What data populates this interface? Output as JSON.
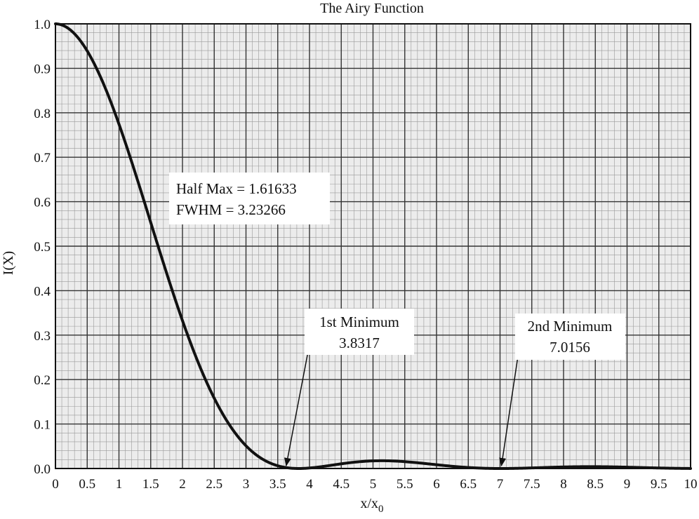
{
  "chart_data": {
    "type": "line",
    "title": "The Airy Function",
    "xlabel": "x/x",
    "xlabel_sub": "0",
    "ylabel": "I(X)",
    "xlim": [
      0,
      10
    ],
    "ylim": [
      0,
      1.0
    ],
    "grid": true,
    "x_ticks": [
      "0",
      "0.5",
      "1",
      "1.5",
      "2",
      "2.5",
      "3",
      "3.5",
      "4",
      "4.5",
      "5",
      "5.5",
      "6",
      "6.5",
      "7",
      "7.5",
      "8",
      "8.5",
      "9",
      "9.5",
      "10"
    ],
    "y_ticks": [
      "0.0",
      "0.1",
      "0.2",
      "0.3",
      "0.4",
      "0.5",
      "0.6",
      "0.7",
      "0.8",
      "0.9",
      "1.0"
    ],
    "series": [
      {
        "function": "airy",
        "x": [
          0,
          0.25,
          0.5,
          0.75,
          1.0,
          1.25,
          1.5,
          1.75,
          2.0,
          2.25,
          2.5,
          2.75,
          3.0,
          3.25,
          3.5,
          3.75,
          3.8317,
          4.0,
          4.5,
          5.0,
          5.1356,
          5.5,
          6.0,
          6.5,
          7.0,
          7.0156,
          7.5,
          8.0,
          8.4172,
          9.0,
          9.5,
          10.0
        ],
        "y": [
          1.0,
          0.984,
          0.939,
          0.867,
          0.775,
          0.67,
          0.558,
          0.448,
          0.333,
          0.237,
          0.157,
          0.093,
          0.046,
          0.017,
          0.003,
          0.0001,
          0.0,
          0.0025,
          0.0123,
          0.0165,
          0.0175,
          0.0148,
          0.0065,
          0.0007,
          0.0,
          0.0,
          0.0017,
          0.0037,
          0.0042,
          0.0028,
          0.0012,
          0.0005
        ]
      }
    ],
    "annotations": [
      {
        "lines": [
          "Half Max = 1.61633",
          "FWHM = 3.23266"
        ]
      },
      {
        "lines": [
          "1st Minimum",
          "3.8317"
        ],
        "arrow_to": [
          3.6,
          0.0
        ]
      },
      {
        "lines": [
          "2nd Minimum",
          "7.0156"
        ],
        "arrow_to": [
          7.0,
          0.0
        ]
      }
    ]
  }
}
